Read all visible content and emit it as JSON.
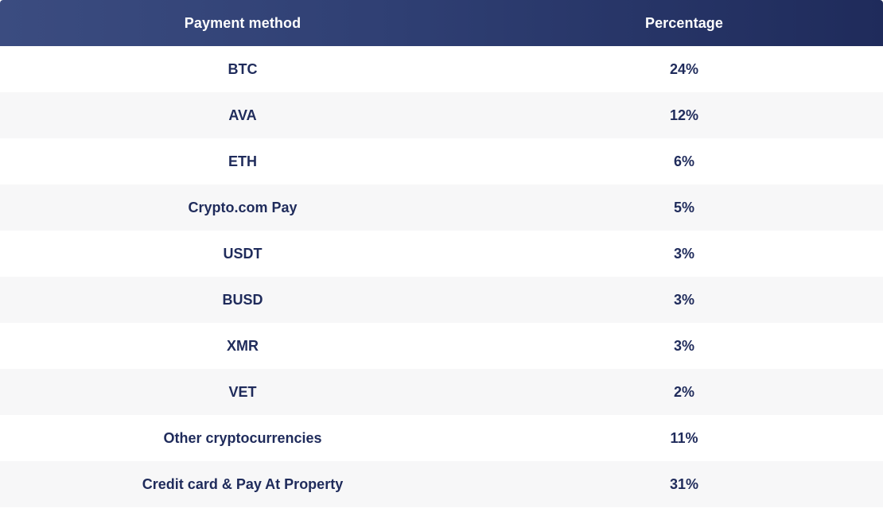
{
  "table": {
    "headers": [
      "Payment method",
      "Percentage"
    ],
    "rows": [
      {
        "method": "BTC",
        "percentage": "24%"
      },
      {
        "method": "AVA",
        "percentage": "12%"
      },
      {
        "method": "ETH",
        "percentage": "6%"
      },
      {
        "method": "Crypto.com Pay",
        "percentage": "5%"
      },
      {
        "method": "USDT",
        "percentage": "3%"
      },
      {
        "method": "BUSD",
        "percentage": "3%"
      },
      {
        "method": "XMR",
        "percentage": "3%"
      },
      {
        "method": "VET",
        "percentage": "2%"
      },
      {
        "method": "Other cryptocurrencies",
        "percentage": "11%"
      },
      {
        "method": "Credit card & Pay At Property",
        "percentage": "31%"
      }
    ]
  },
  "colors": {
    "header_gradient_start": "#3b4c80",
    "header_gradient_end": "#1f2b5b",
    "text": "#1f2b5b",
    "stripe": "#f7f7f8"
  }
}
